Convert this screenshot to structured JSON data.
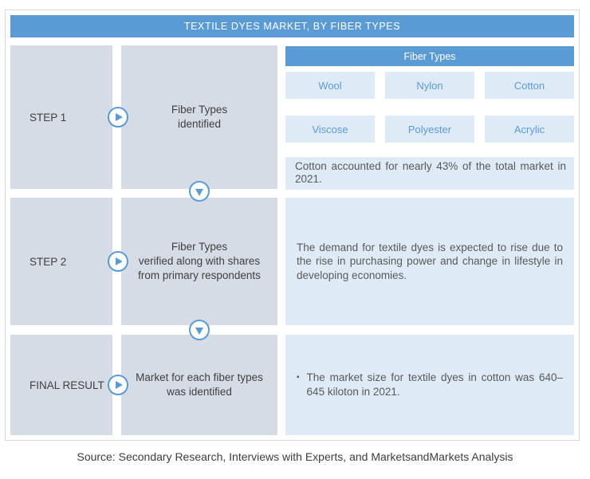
{
  "title": "TEXTILE DYES MARKET, BY FIBER TYPES",
  "steps": [
    {
      "label": "STEP 1",
      "description": "Fiber Types\nidentified"
    },
    {
      "label": "STEP 2",
      "description": "Fiber Types\nverified along with shares\nfrom primary respondents"
    },
    {
      "label": "FINAL RESULT",
      "description": "Market for each fiber types\nwas identified"
    }
  ],
  "fiber_types": {
    "title": "Fiber Types",
    "items": [
      "Wool",
      "Nylon",
      "Cotton",
      "Viscose",
      "Polyester",
      "Acrylic"
    ],
    "note": "Cotton accounted for nearly 43% of the total market in 2021."
  },
  "insights": {
    "step2": "The demand for textile dyes is expected to rise due to the rise in purchasing power and change in lifestyle in developing economies.",
    "final_bullet": "The market size for textile dyes in cotton was 640–645 kiloton in 2021."
  },
  "footer": "Source: Secondary Research, Interviews with Experts, and MarketsandMarkets Analysis",
  "colors": {
    "header_blue": "#5b9bd5",
    "box_gray": "#d6dce5",
    "panel_blue": "#deeaf6",
    "accent_text": "#5b9bd5",
    "body_text": "#595959"
  }
}
